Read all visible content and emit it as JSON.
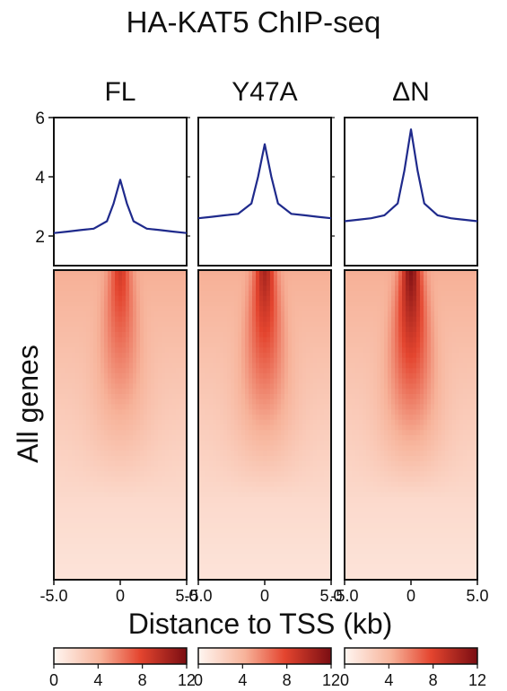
{
  "title": "HA-KAT5 ChIP-seq",
  "chart_data": {
    "type": "heatmap",
    "title": "HA-KAT5 ChIP-seq",
    "xlabel": "Distance to TSS (kb)",
    "ylabel": "All genes",
    "x_range": [
      -5.0,
      5.0
    ],
    "x_ticks": [
      "-5.0",
      "0",
      "5.0"
    ],
    "profile": {
      "ylim": [
        1,
        6
      ],
      "y_ticks": [
        "2",
        "4",
        "6"
      ],
      "color": "#1f2a8c"
    },
    "colorbar": {
      "range": [
        0,
        12
      ],
      "ticks": [
        "0",
        "4",
        "8",
        "12"
      ],
      "color_low": "#fff6f1",
      "color_high": "#7a0d12"
    },
    "panels": [
      {
        "name": "FL",
        "profile_x": [
          -5,
          -4,
          -3,
          -2,
          -1,
          -0.5,
          0,
          0.5,
          1,
          2,
          3,
          4,
          5
        ],
        "profile_y": [
          2.1,
          2.15,
          2.2,
          2.25,
          2.5,
          3.1,
          3.9,
          3.1,
          2.5,
          2.25,
          2.2,
          2.15,
          2.1
        ]
      },
      {
        "name": "Y47A",
        "profile_x": [
          -5,
          -4,
          -3,
          -2,
          -1,
          -0.5,
          0,
          0.5,
          1,
          2,
          3,
          4,
          5
        ],
        "profile_y": [
          2.6,
          2.65,
          2.7,
          2.75,
          3.1,
          4.0,
          5.1,
          4.0,
          3.1,
          2.75,
          2.7,
          2.65,
          2.6
        ]
      },
      {
        "name": "ΔN",
        "profile_x": [
          -5,
          -4,
          -3,
          -2,
          -1,
          -0.5,
          0,
          0.5,
          1,
          2,
          3,
          4,
          5
        ],
        "profile_y": [
          2.5,
          2.55,
          2.6,
          2.7,
          3.1,
          4.2,
          5.6,
          4.2,
          3.1,
          2.7,
          2.6,
          2.55,
          2.5
        ]
      }
    ]
  }
}
